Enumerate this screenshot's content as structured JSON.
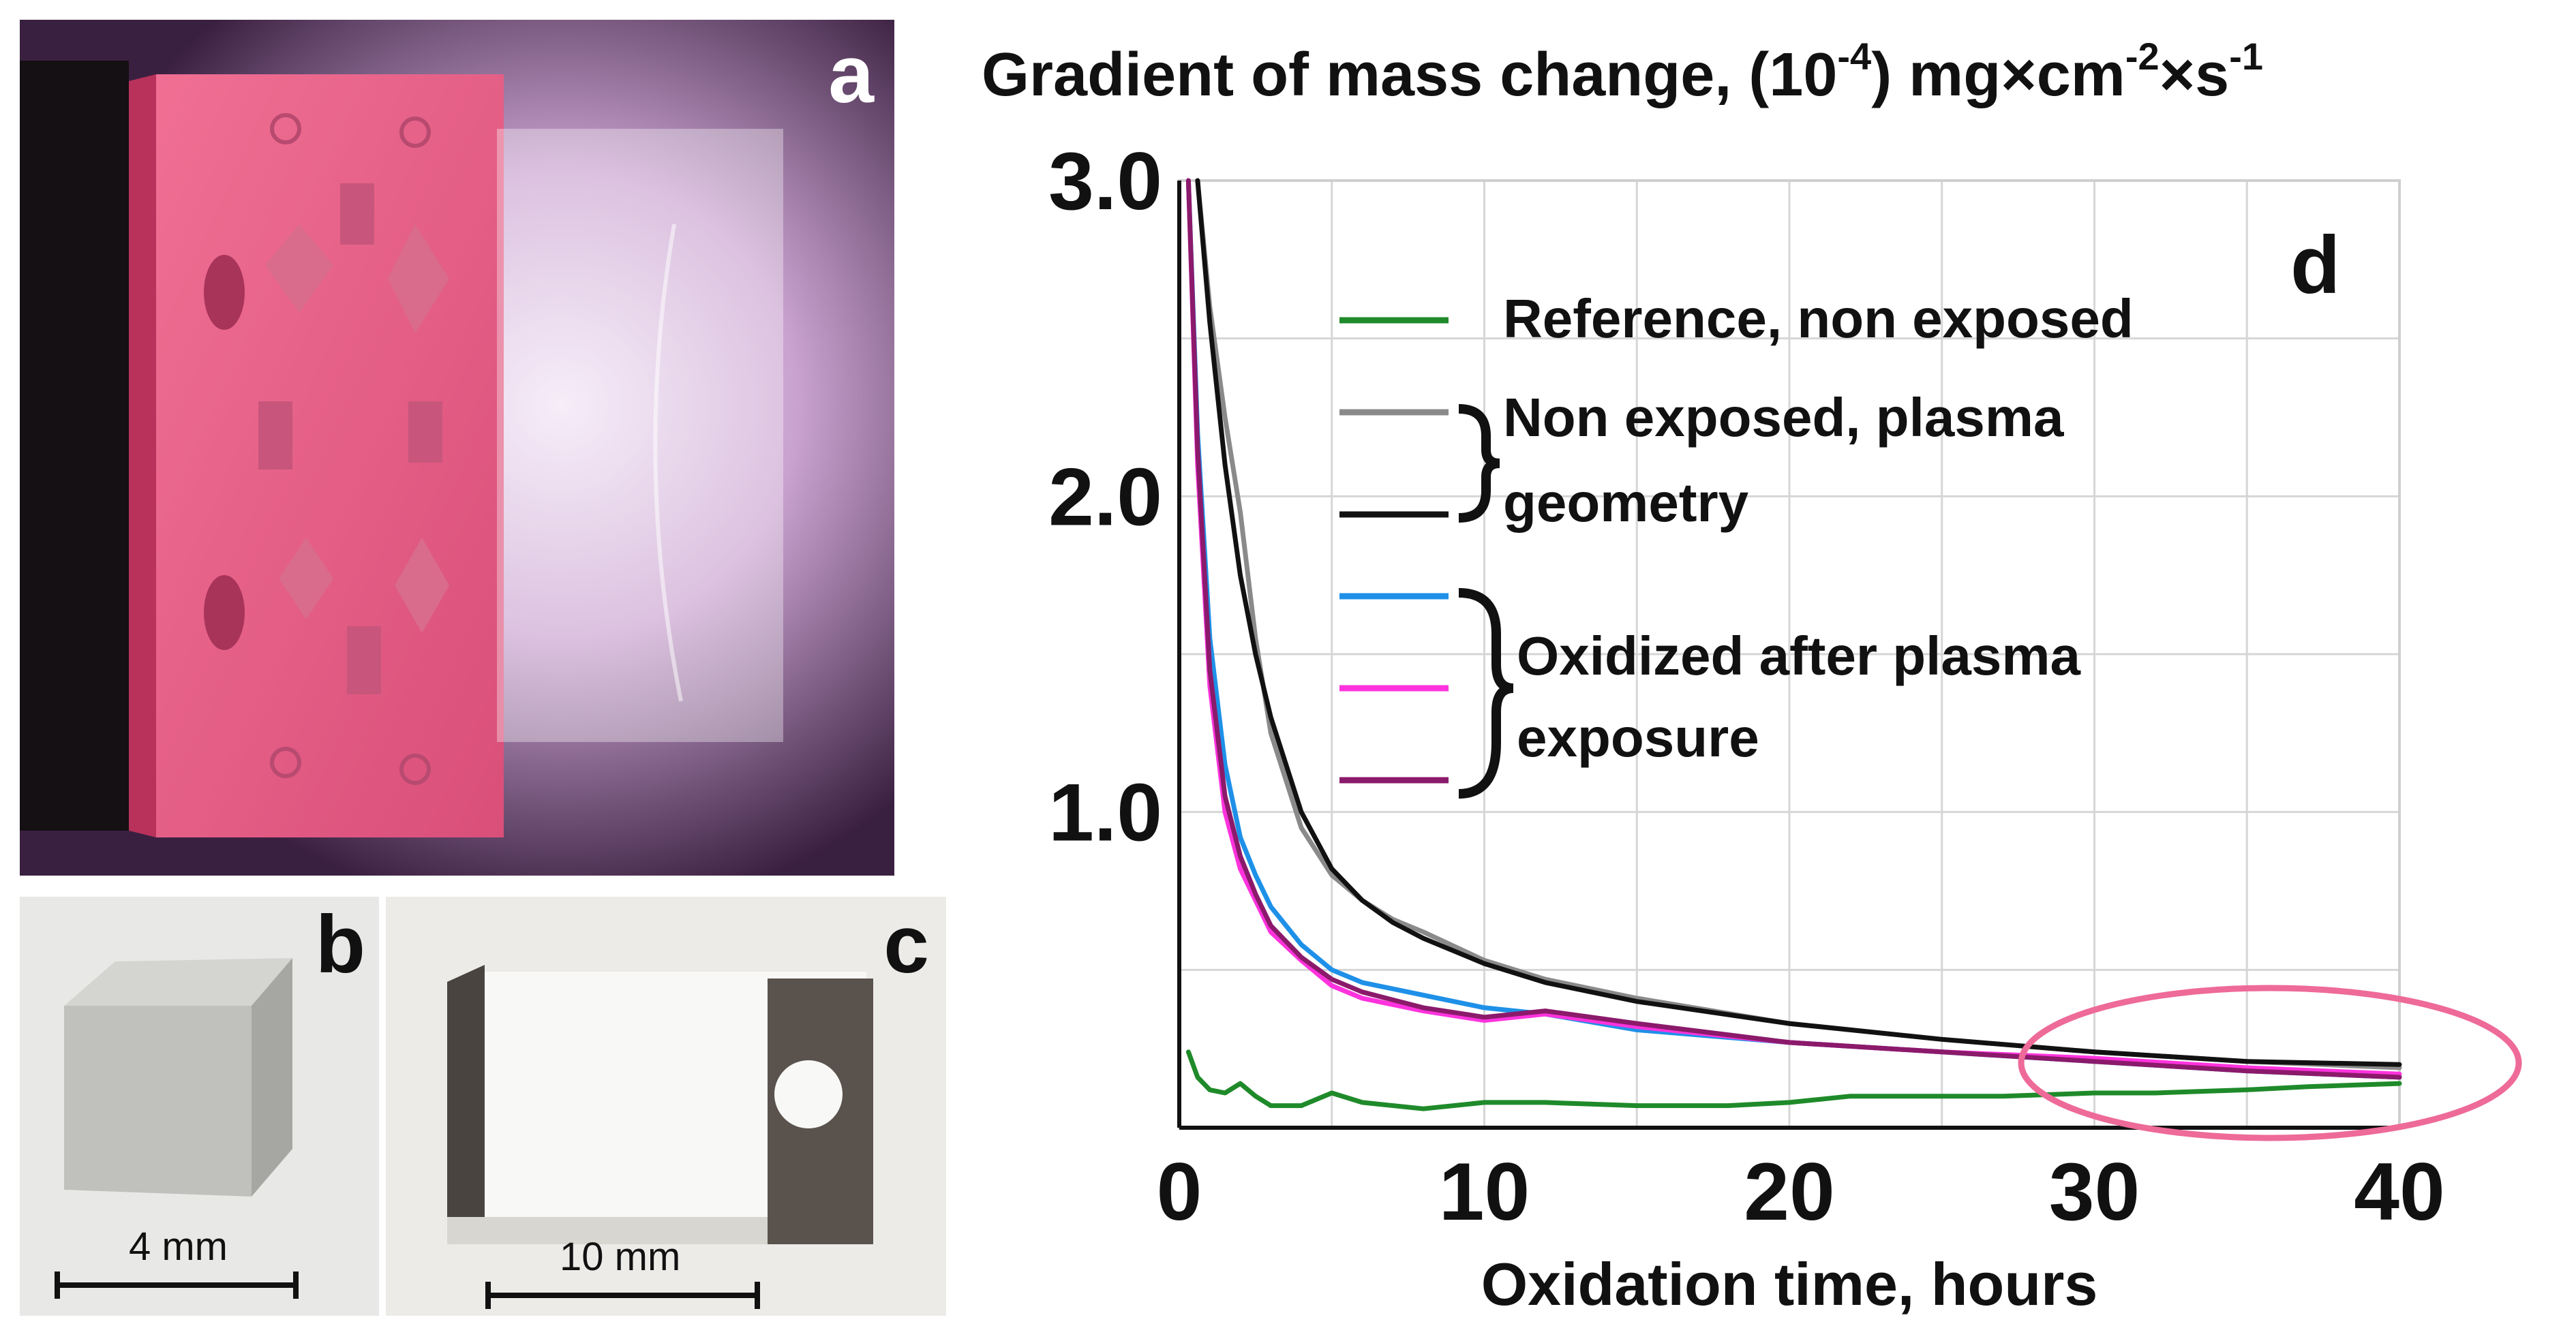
{
  "panels": {
    "a": {
      "letter": "a",
      "image": "pink-sample-holder-plasma-photo"
    },
    "b": {
      "letter": "b",
      "image": "aluminium-cube-photo",
      "scale_label": "4 mm"
    },
    "c": {
      "letter": "c",
      "image": "plate-sample-in-holder-photo",
      "scale_label": "10 mm"
    },
    "d": {
      "letter": "d"
    }
  },
  "colors": {
    "background": "#ffffff",
    "highlight_ellipse": "#ee6a98",
    "grid": "#d6d6d6"
  },
  "chart_data": {
    "type": "line",
    "title": "Gradient of mass change, (10",
    "title_exp1": "-4",
    "title_mid": ") mg×cm",
    "title_exp2": "-2",
    "title_mid2": "×s",
    "title_exp3": "-1",
    "xlabel": "Oxidation time, hours",
    "ylabel": "",
    "xlim": [
      0,
      40
    ],
    "ylim": [
      0,
      3.0
    ],
    "xticks": [
      0,
      10,
      20,
      30,
      40
    ],
    "xtick_labels": [
      "0",
      "10",
      "20",
      "30",
      "40"
    ],
    "yticks": [
      1.0,
      2.0,
      3.0
    ],
    "ytick_labels": [
      "1.0",
      "2.0",
      "3.0"
    ],
    "grid": true,
    "legend_position": "top-right",
    "legend": {
      "reference": "Reference, non exposed",
      "non_exposed_line1": "Non exposed, plasma",
      "non_exposed_line2": "geometry",
      "oxidized_line1": "Oxidized after plasma",
      "oxidized_line2": "exposure"
    },
    "annotation": "highlighted region ~26–40 h (pink ellipse)",
    "series": [
      {
        "name": "Reference, non exposed",
        "color": "#1f8a2a",
        "x": [
          0.3,
          0.6,
          1.0,
          1.5,
          2.0,
          2.5,
          3.0,
          4.0,
          5.0,
          6.0,
          8.0,
          10.0,
          12.0,
          15.0,
          18.0,
          20.0,
          22.0,
          25.0,
          27.0,
          30.0,
          32.0,
          35.0,
          37.0,
          40.0
        ],
        "values": [
          0.24,
          0.16,
          0.12,
          0.11,
          0.14,
          0.1,
          0.07,
          0.07,
          0.11,
          0.08,
          0.06,
          0.08,
          0.08,
          0.07,
          0.07,
          0.08,
          0.1,
          0.1,
          0.1,
          0.11,
          0.11,
          0.12,
          0.13,
          0.14
        ]
      },
      {
        "name": "Non exposed, plasma geometry (gray)",
        "color": "#8a8a8a",
        "x": [
          0.6,
          1.0,
          1.5,
          2.0,
          2.5,
          3.0,
          4.0,
          5.0,
          6.0,
          7.0,
          8.0,
          10.0,
          12.0,
          15.0,
          20.0,
          25.0,
          30.0,
          35.0,
          40.0
        ],
        "values": [
          3.0,
          2.6,
          2.25,
          1.95,
          1.55,
          1.25,
          0.95,
          0.8,
          0.72,
          0.66,
          0.62,
          0.53,
          0.47,
          0.41,
          0.33,
          0.28,
          0.24,
          0.21,
          0.19
        ]
      },
      {
        "name": "Non exposed, plasma geometry (black)",
        "color": "#111111",
        "x": [
          0.6,
          1.0,
          1.5,
          2.0,
          2.5,
          3.0,
          4.0,
          5.0,
          6.0,
          7.0,
          8.0,
          10.0,
          12.0,
          15.0,
          20.0,
          25.0,
          30.0,
          35.0,
          40.0
        ],
        "values": [
          3.0,
          2.55,
          2.1,
          1.75,
          1.5,
          1.3,
          1.0,
          0.82,
          0.72,
          0.65,
          0.6,
          0.52,
          0.46,
          0.4,
          0.33,
          0.28,
          0.24,
          0.21,
          0.2
        ]
      },
      {
        "name": "Oxidized after plasma exposure (blue)",
        "color": "#1e90e8",
        "x": [
          0.3,
          0.6,
          1.0,
          1.5,
          2.0,
          2.5,
          3.0,
          4.0,
          5.0,
          6.0,
          8.0,
          10.0,
          12.0,
          15.0,
          20.0,
          25.0,
          30.0,
          35.0,
          40.0
        ],
        "values": [
          3.0,
          2.2,
          1.55,
          1.15,
          0.92,
          0.8,
          0.7,
          0.58,
          0.5,
          0.46,
          0.42,
          0.38,
          0.36,
          0.31,
          0.27,
          0.24,
          0.21,
          0.18,
          0.16
        ]
      },
      {
        "name": "Oxidized after plasma exposure (magenta)",
        "color": "#ff33dd",
        "x": [
          0.3,
          0.6,
          1.0,
          1.5,
          2.0,
          2.5,
          3.0,
          4.0,
          5.0,
          6.0,
          8.0,
          10.0,
          12.0,
          15.0,
          20.0,
          25.0,
          30.0,
          35.0,
          40.0
        ],
        "values": [
          3.0,
          2.1,
          1.4,
          1.0,
          0.82,
          0.72,
          0.62,
          0.53,
          0.45,
          0.41,
          0.37,
          0.34,
          0.36,
          0.32,
          0.27,
          0.24,
          0.22,
          0.19,
          0.17
        ]
      },
      {
        "name": "Oxidized after plasma exposure (purple)",
        "color": "#8b1a6b",
        "x": [
          0.3,
          0.6,
          1.0,
          1.5,
          2.0,
          2.5,
          3.0,
          4.0,
          5.0,
          6.0,
          8.0,
          10.0,
          12.0,
          15.0,
          20.0,
          25.0,
          30.0,
          35.0,
          40.0
        ],
        "values": [
          3.0,
          2.15,
          1.45,
          1.05,
          0.86,
          0.74,
          0.64,
          0.54,
          0.47,
          0.43,
          0.38,
          0.35,
          0.37,
          0.33,
          0.27,
          0.24,
          0.21,
          0.18,
          0.16
        ]
      }
    ]
  }
}
